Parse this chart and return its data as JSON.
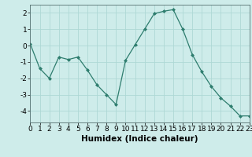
{
  "x": [
    0,
    1,
    2,
    3,
    4,
    5,
    6,
    7,
    8,
    9,
    10,
    11,
    12,
    13,
    14,
    15,
    16,
    17,
    18,
    19,
    20,
    21,
    22,
    23
  ],
  "y": [
    0.1,
    -1.4,
    -2.0,
    -0.7,
    -0.85,
    -0.7,
    -1.5,
    -2.4,
    -3.0,
    -3.6,
    -0.9,
    0.05,
    1.0,
    1.95,
    2.1,
    2.2,
    1.0,
    -0.55,
    -1.6,
    -2.5,
    -3.2,
    -3.7,
    -4.3,
    -4.3
  ],
  "line_color": "#2e7d6e",
  "marker": "D",
  "marker_size": 2.0,
  "bg_color": "#ceecea",
  "grid_color": "#aed8d5",
  "xlabel": "Humidex (Indice chaleur)",
  "xlim": [
    0,
    23
  ],
  "ylim": [
    -4.7,
    2.5
  ],
  "yticks": [
    -4,
    -3,
    -2,
    -1,
    0,
    1,
    2
  ],
  "xticks": [
    0,
    1,
    2,
    3,
    4,
    5,
    6,
    7,
    8,
    9,
    10,
    11,
    12,
    13,
    14,
    15,
    16,
    17,
    18,
    19,
    20,
    21,
    22,
    23
  ],
  "xlabel_fontsize": 7.5,
  "tick_fontsize": 6.5
}
